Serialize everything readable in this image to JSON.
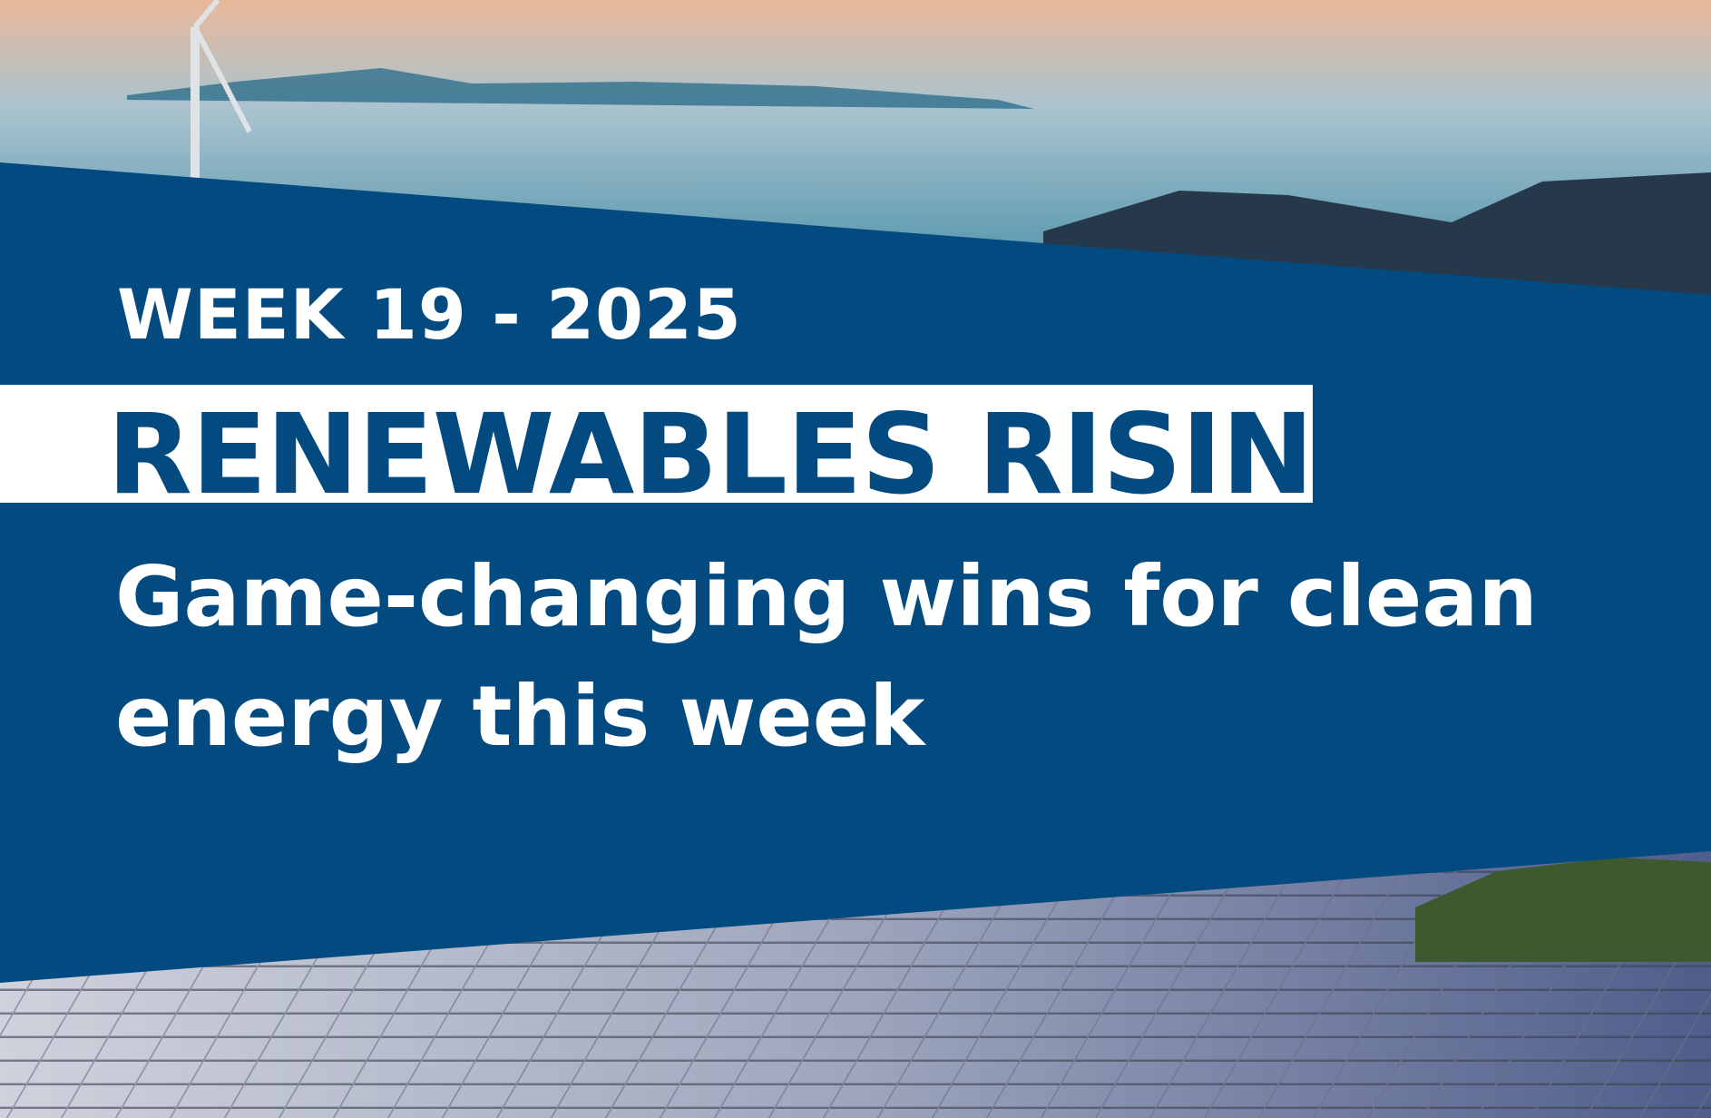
{
  "colors": {
    "brand_blue": "#024a80",
    "title_box": "#ffffff",
    "text": "#ffffff"
  },
  "header": {
    "week_label": "WEEK 19 - 2025",
    "title": "RENEWABLES RISING",
    "subtitle_line1": "Game-changing wins for clean",
    "subtitle_line2": "energy this week"
  }
}
